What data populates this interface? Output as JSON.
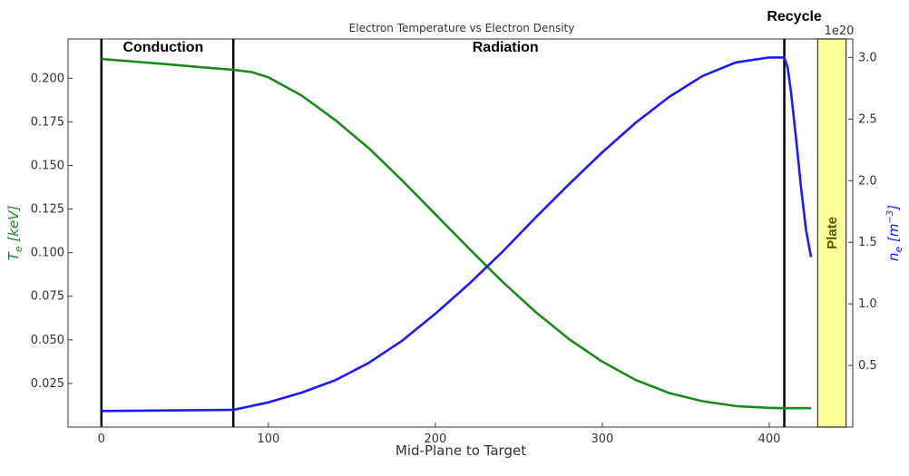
{
  "chart_data": {
    "type": "line",
    "title": "Electron Temperature vs Electron Density",
    "xlabel": "Mid-Plane to Target",
    "xlim": [
      -20,
      450
    ],
    "x_ticks": [
      0,
      100,
      200,
      300,
      400
    ],
    "y_left": {
      "label": "T_e [keV]",
      "label_parts": {
        "base": "T",
        "sub": "e",
        "unit": "[keV]"
      },
      "ylim": [
        0.0,
        0.2225
      ],
      "ticks": [
        0.025,
        0.05,
        0.075,
        0.1,
        0.125,
        0.15,
        0.175,
        0.2
      ],
      "tick_labels": [
        "0.025",
        "0.050",
        "0.075",
        "0.100",
        "0.125",
        "0.150",
        "0.175",
        "0.200"
      ],
      "color": "#1a8a1a"
    },
    "y_right": {
      "label": "n_e [m^-3]",
      "label_parts": {
        "base": "n",
        "sub": "e",
        "unit_open": "[m",
        "sup": "−3",
        "unit_close": "]"
      },
      "ylim": [
        0.0,
        3.15
      ],
      "ticks": [
        0.5,
        1.0,
        1.5,
        2.0,
        2.5,
        3.0
      ],
      "tick_labels": [
        "0.5",
        "1.0",
        "1.5",
        "2.0",
        "2.5",
        "3.0"
      ],
      "offset_text": "1e20",
      "color": "#1a1aff"
    },
    "series": [
      {
        "name": "T_e",
        "axis": "left",
        "color": "#1a8a1a",
        "x": [
          0,
          20,
          40,
          60,
          79,
          90,
          100,
          120,
          140,
          160,
          180,
          200,
          220,
          240,
          260,
          280,
          300,
          320,
          340,
          360,
          380,
          400,
          409,
          425
        ],
        "y": [
          0.211,
          0.2095,
          0.208,
          0.2063,
          0.2048,
          0.2035,
          0.2005,
          0.19,
          0.176,
          0.16,
          0.1415,
          0.122,
          0.1025,
          0.0835,
          0.066,
          0.0505,
          0.0375,
          0.027,
          0.0195,
          0.0148,
          0.012,
          0.011,
          0.0108,
          0.0108
        ]
      },
      {
        "name": "n_e",
        "axis": "right",
        "color": "#1a1aff",
        "x": [
          0,
          40,
          79,
          100,
          120,
          140,
          160,
          180,
          200,
          220,
          240,
          260,
          280,
          300,
          320,
          340,
          360,
          380,
          400,
          409,
          411,
          413,
          416,
          419,
          422,
          425
        ],
        "y": [
          0.13,
          0.135,
          0.14,
          0.2,
          0.28,
          0.38,
          0.52,
          0.7,
          0.92,
          1.16,
          1.42,
          1.7,
          1.97,
          2.23,
          2.47,
          2.68,
          2.85,
          2.96,
          3.0,
          3.0,
          2.92,
          2.72,
          2.35,
          1.95,
          1.6,
          1.38
        ]
      }
    ],
    "vertical_lines": [
      0,
      79,
      409
    ],
    "regions": [
      {
        "label": "Conduction",
        "x_center": 37
      },
      {
        "label": "Radiation",
        "x_center": 242
      },
      {
        "label": "Recycle",
        "x_center": 415
      }
    ],
    "plate": {
      "label": "Plate",
      "x_start": 429,
      "x_end": 446,
      "color": "#ffff99",
      "edge_color": "#333333"
    },
    "grid": false,
    "legend": "none"
  }
}
